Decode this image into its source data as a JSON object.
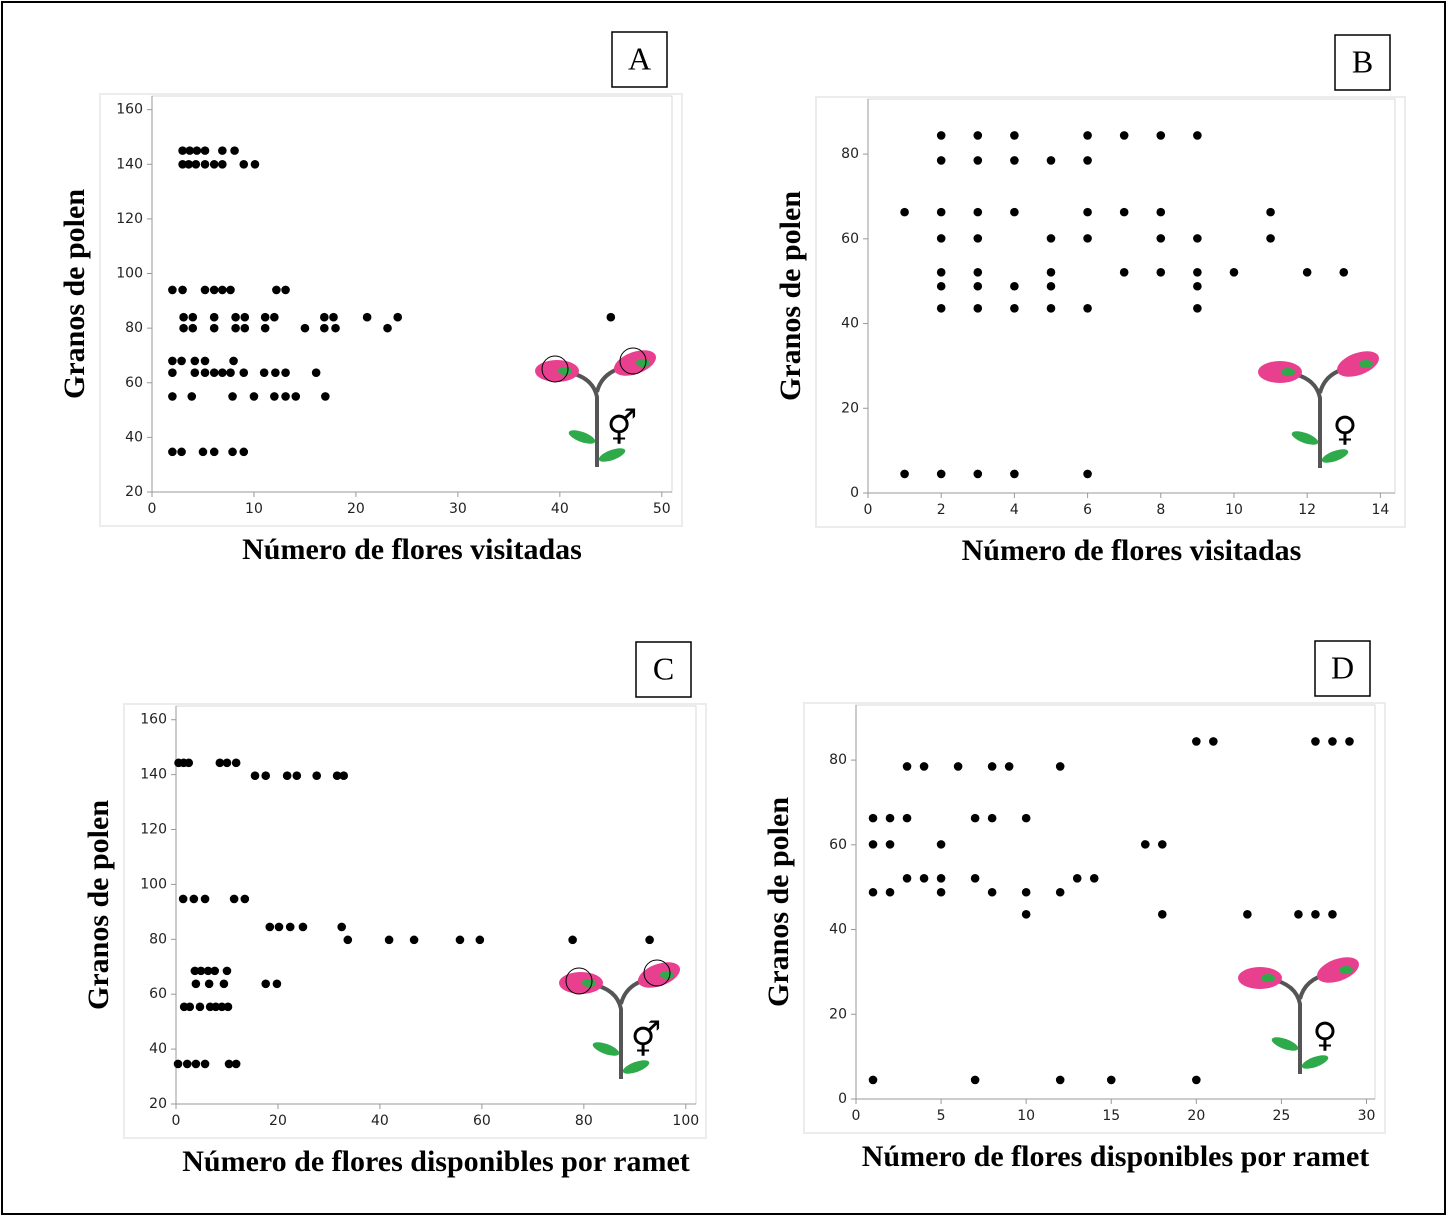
{
  "chart_data": [
    {
      "type": "scatter",
      "label": "A",
      "symbol": "⚥",
      "xlabel": "Número de flores visitadas",
      "ylabel": "Granos de polen",
      "x": [
        3,
        3.7,
        4.4,
        5.2,
        6.9,
        8.1,
        3,
        3.6,
        4.3,
        5.2,
        6.1,
        6.9,
        9,
        10.1,
        2,
        3,
        5.2,
        6.1,
        6.9,
        7.7,
        12.2,
        13.1,
        3.1,
        4,
        6.1,
        8.2,
        9.1,
        11.1,
        12,
        16.9,
        17.8,
        21.1,
        24.1,
        45,
        3.1,
        4,
        6.1,
        8.2,
        9.1,
        11.1,
        15,
        16.9,
        18,
        23.1,
        2,
        2.9,
        4.2,
        5.2,
        8,
        2,
        4.2,
        5.2,
        6.1,
        6.9,
        7.7,
        9,
        11,
        12.1,
        13.1,
        16.1,
        2,
        3.9,
        7.9,
        10,
        12,
        13.1,
        14.1,
        17,
        2,
        2.9,
        5,
        6.1,
        7.9,
        9
      ],
      "y": [
        145,
        145,
        145,
        145,
        145,
        145,
        140,
        140,
        140,
        140,
        140,
        140,
        140,
        140,
        94,
        94,
        94,
        94,
        94,
        94,
        94,
        94,
        84,
        84,
        84,
        84,
        84,
        84,
        84,
        84,
        84,
        84,
        84,
        84,
        80,
        80,
        80,
        80,
        80,
        80,
        80,
        80,
        80,
        80,
        68,
        68,
        68,
        68,
        68,
        63.7,
        63.7,
        63.7,
        63.7,
        63.7,
        63.7,
        63.7,
        63.7,
        63.7,
        63.7,
        63.7,
        55,
        55,
        55,
        55,
        55,
        55,
        55,
        55,
        34.7,
        34.7,
        34.7,
        34.7,
        34.7,
        34.7
      ],
      "color": "#000000",
      "xlim": [
        0,
        51
      ],
      "ylim": [
        20,
        165
      ],
      "xticks": [
        0,
        10,
        20,
        30,
        40,
        50
      ],
      "yticks": [
        20,
        40,
        60,
        80,
        100,
        120,
        140,
        160
      ]
    },
    {
      "type": "scatter",
      "label": "B",
      "symbol": "♀",
      "xlabel": "Número de flores visitadas",
      "ylabel": "Granos de polen",
      "x": [
        2,
        3,
        4,
        6,
        7,
        8,
        9,
        2,
        3,
        4,
        5,
        6,
        1,
        2,
        3,
        4,
        6,
        7,
        8,
        11,
        2,
        3,
        5,
        6,
        8,
        9,
        11,
        2,
        3,
        5,
        7,
        8,
        9,
        10,
        12,
        13,
        2,
        3,
        4,
        5,
        9,
        2,
        3,
        4,
        5,
        6,
        9,
        1,
        2,
        3,
        4,
        6
      ],
      "y": [
        84.4,
        84.4,
        84.4,
        84.4,
        84.4,
        84.4,
        84.4,
        78.5,
        78.5,
        78.5,
        78.5,
        78.5,
        66.3,
        66.3,
        66.3,
        66.3,
        66.3,
        66.3,
        66.3,
        66.3,
        60.1,
        60.1,
        60.1,
        60.1,
        60.1,
        60.1,
        60.1,
        52.1,
        52.1,
        52.1,
        52.1,
        52.1,
        52.1,
        52.1,
        52.1,
        52.1,
        48.8,
        48.8,
        48.8,
        48.8,
        48.8,
        43.6,
        43.6,
        43.6,
        43.6,
        43.6,
        43.6,
        4.5,
        4.5,
        4.5,
        4.5,
        4.5
      ],
      "color": "#000000",
      "xlim": [
        0,
        14.4
      ],
      "ylim": [
        0,
        93
      ],
      "xticks": [
        0,
        2,
        4,
        6,
        8,
        10,
        12,
        14
      ],
      "yticks": [
        0,
        20,
        40,
        60,
        80
      ]
    },
    {
      "type": "scatter",
      "label": "C",
      "symbol": "⚥",
      "xlabel": "Número de flores disponibles por ramet",
      "ylabel": "Granos de polen",
      "x": [
        0.5,
        1.5,
        2.5,
        8.6,
        10,
        11.8,
        15.5,
        17.6,
        21.8,
        23.7,
        27.6,
        31.6,
        32.9,
        1.4,
        3.5,
        5.7,
        11.4,
        13.5,
        18.4,
        20.2,
        22.4,
        24.9,
        32.5,
        33.7,
        41.8,
        46.7,
        55.7,
        59.6,
        77.8,
        92.9,
        3.7,
        4.9,
        6.3,
        7.6,
        10,
        3.9,
        6.5,
        9.4,
        17.6,
        19.8,
        1.6,
        2.7,
        4.7,
        6.7,
        7.8,
        9,
        10.2,
        0.4,
        2.2,
        3.9,
        5.7,
        10.4,
        11.8
      ],
      "y": [
        144.3,
        144.3,
        144.3,
        144.3,
        144.3,
        144.3,
        139.6,
        139.6,
        139.6,
        139.6,
        139.6,
        139.6,
        139.6,
        94.7,
        94.7,
        94.7,
        94.7,
        94.7,
        84.5,
        84.5,
        84.5,
        84.5,
        84.5,
        79.8,
        79.8,
        79.8,
        79.8,
        79.8,
        79.8,
        79.8,
        68.5,
        68.5,
        68.5,
        68.5,
        68.5,
        63.8,
        63.8,
        63.8,
        63.8,
        63.8,
        55.4,
        55.4,
        55.4,
        55.4,
        55.4,
        55.4,
        55.4,
        34.6,
        34.6,
        34.6,
        34.6,
        34.6,
        34.6
      ],
      "color": "#000000",
      "xlim": [
        0,
        102
      ],
      "ylim": [
        20,
        165
      ],
      "xticks": [
        0,
        20,
        40,
        60,
        80,
        100
      ],
      "yticks": [
        20,
        40,
        60,
        80,
        100,
        120,
        140,
        160
      ]
    },
    {
      "type": "scatter",
      "label": "D",
      "symbol": "♀",
      "xlabel": "Número de flores disponibles por ramet",
      "ylabel": "Granos de polen",
      "x": [
        20,
        21,
        27,
        28,
        29,
        3,
        4,
        6,
        8,
        9,
        12,
        1,
        2,
        3,
        7,
        8,
        10,
        1,
        2,
        5,
        17,
        18,
        3,
        4,
        5,
        7,
        13,
        14,
        1,
        2,
        5,
        8,
        10,
        12,
        10,
        18,
        23,
        26,
        27,
        28,
        1,
        7,
        12,
        15,
        20
      ],
      "y": [
        84.4,
        84.4,
        84.4,
        84.4,
        84.4,
        78.5,
        78.5,
        78.5,
        78.5,
        78.5,
        78.5,
        66.3,
        66.3,
        66.3,
        66.3,
        66.3,
        66.3,
        60.1,
        60.1,
        60.1,
        60.1,
        60.1,
        52.1,
        52.1,
        52.1,
        52.1,
        52.1,
        52.1,
        48.8,
        48.8,
        48.8,
        48.8,
        48.8,
        48.8,
        43.6,
        43.6,
        43.6,
        43.6,
        43.6,
        43.6,
        4.5,
        4.5,
        4.5,
        4.5,
        4.5
      ],
      "color": "#000000",
      "xlim": [
        0,
        30.5
      ],
      "ylim": [
        0,
        93
      ],
      "xticks": [
        0,
        5,
        10,
        15,
        20,
        25,
        30
      ],
      "yticks": [
        0,
        20,
        40,
        60,
        80
      ]
    }
  ]
}
